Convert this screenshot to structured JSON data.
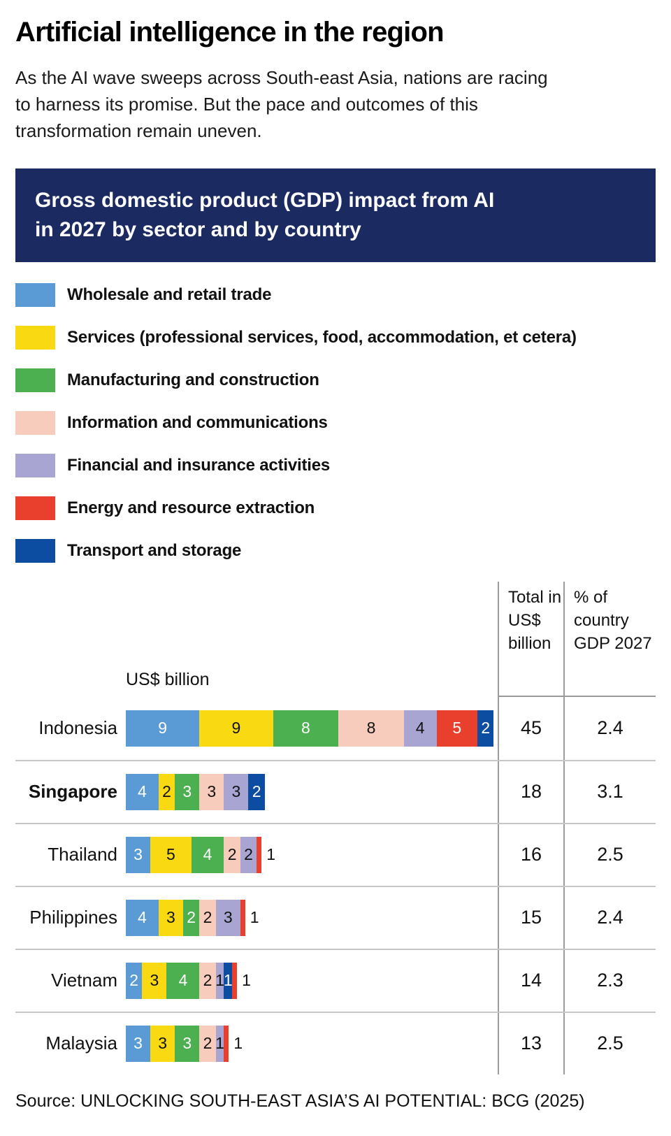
{
  "page": {
    "title": "Artificial intelligence in the region",
    "subtitle": "As the AI wave sweeps across South-east Asia, nations are racing to harness its promise. But the pace and outcomes of this transformation remain uneven.",
    "source": "Source: UNLOCKING SOUTH-EAST ASIA’S AI POTENTIAL: BCG (2025)"
  },
  "banner": {
    "title": "Gross domestic product (GDP) impact from AI in 2027 by sector and by country",
    "background": "#1B2A60"
  },
  "chart_data": {
    "type": "bar",
    "variant": "horizontal-stacked",
    "axis_label": "US$ billion",
    "legend_position": "top-left",
    "unit": "US$ billion",
    "columns": {
      "total_header": "Total in US$ billion",
      "pct_header": "% of country GDP 2027"
    },
    "sectors": [
      {
        "key": "wholesale",
        "label": "Wholesale and retail trade",
        "color": "#5B9BD5",
        "text": "#FFFFFF"
      },
      {
        "key": "services",
        "label": "Services (professional services, food, accommodation, et cetera)",
        "color": "#F8D912",
        "text": "#111111"
      },
      {
        "key": "manufacturing",
        "label": "Manufacturing and construction",
        "color": "#4CAF50",
        "text": "#FFFFFF"
      },
      {
        "key": "information",
        "label": "Information and communications",
        "color": "#F7CCBC",
        "text": "#111111"
      },
      {
        "key": "financial",
        "label": "Financial and insurance activities",
        "color": "#A8A5D3",
        "text": "#111111"
      },
      {
        "key": "energy",
        "label": "Energy and resource extraction",
        "color": "#E8402D",
        "text": "#FFFFFF"
      },
      {
        "key": "transport",
        "label": "Transport and storage",
        "color": "#0C4DA2",
        "text": "#FFFFFF"
      }
    ],
    "rows": [
      {
        "country": "Indonesia",
        "bold": false,
        "total": 45,
        "pct": "2.4",
        "segments": [
          {
            "sector": "wholesale",
            "value": 9
          },
          {
            "sector": "services",
            "value": 9
          },
          {
            "sector": "manufacturing",
            "value": 8
          },
          {
            "sector": "information",
            "value": 8
          },
          {
            "sector": "financial",
            "value": 4
          },
          {
            "sector": "energy",
            "value": 5
          },
          {
            "sector": "transport",
            "value": 2
          }
        ]
      },
      {
        "country": "Singapore",
        "bold": true,
        "total": 18,
        "pct": "3.1",
        "segments": [
          {
            "sector": "wholesale",
            "value": 4
          },
          {
            "sector": "services",
            "value": 2
          },
          {
            "sector": "manufacturing",
            "value": 3
          },
          {
            "sector": "information",
            "value": 3
          },
          {
            "sector": "financial",
            "value": 3
          },
          {
            "sector": "transport",
            "value": 2
          }
        ]
      },
      {
        "country": "Thailand",
        "bold": false,
        "total": 16,
        "pct": "2.5",
        "segments": [
          {
            "sector": "wholesale",
            "value": 3
          },
          {
            "sector": "services",
            "value": 5
          },
          {
            "sector": "manufacturing",
            "value": 4
          },
          {
            "sector": "information",
            "value": 2
          },
          {
            "sector": "financial",
            "value": 2
          },
          {
            "sector": "energy",
            "value": 1,
            "label_outside": true
          }
        ]
      },
      {
        "country": "Philippines",
        "bold": false,
        "total": 15,
        "pct": "2.4",
        "segments": [
          {
            "sector": "wholesale",
            "value": 4
          },
          {
            "sector": "services",
            "value": 3
          },
          {
            "sector": "manufacturing",
            "value": 2
          },
          {
            "sector": "information",
            "value": 2
          },
          {
            "sector": "financial",
            "value": 3
          },
          {
            "sector": "energy",
            "value": 1,
            "label_outside": true
          }
        ]
      },
      {
        "country": "Vietnam",
        "bold": false,
        "total": 14,
        "pct": "2.3",
        "segments": [
          {
            "sector": "wholesale",
            "value": 2
          },
          {
            "sector": "services",
            "value": 3
          },
          {
            "sector": "manufacturing",
            "value": 4
          },
          {
            "sector": "information",
            "value": 2
          },
          {
            "sector": "financial",
            "value": 1
          },
          {
            "sector": "transport",
            "value": 1
          },
          {
            "sector": "energy",
            "value": 1,
            "label_outside": true
          }
        ]
      },
      {
        "country": "Malaysia",
        "bold": false,
        "total": 13,
        "pct": "2.5",
        "segments": [
          {
            "sector": "wholesale",
            "value": 3
          },
          {
            "sector": "services",
            "value": 3
          },
          {
            "sector": "manufacturing",
            "value": 3
          },
          {
            "sector": "information",
            "value": 2
          },
          {
            "sector": "financial",
            "value": 1
          },
          {
            "sector": "energy",
            "value": 1,
            "label_outside": true
          }
        ]
      }
    ]
  }
}
